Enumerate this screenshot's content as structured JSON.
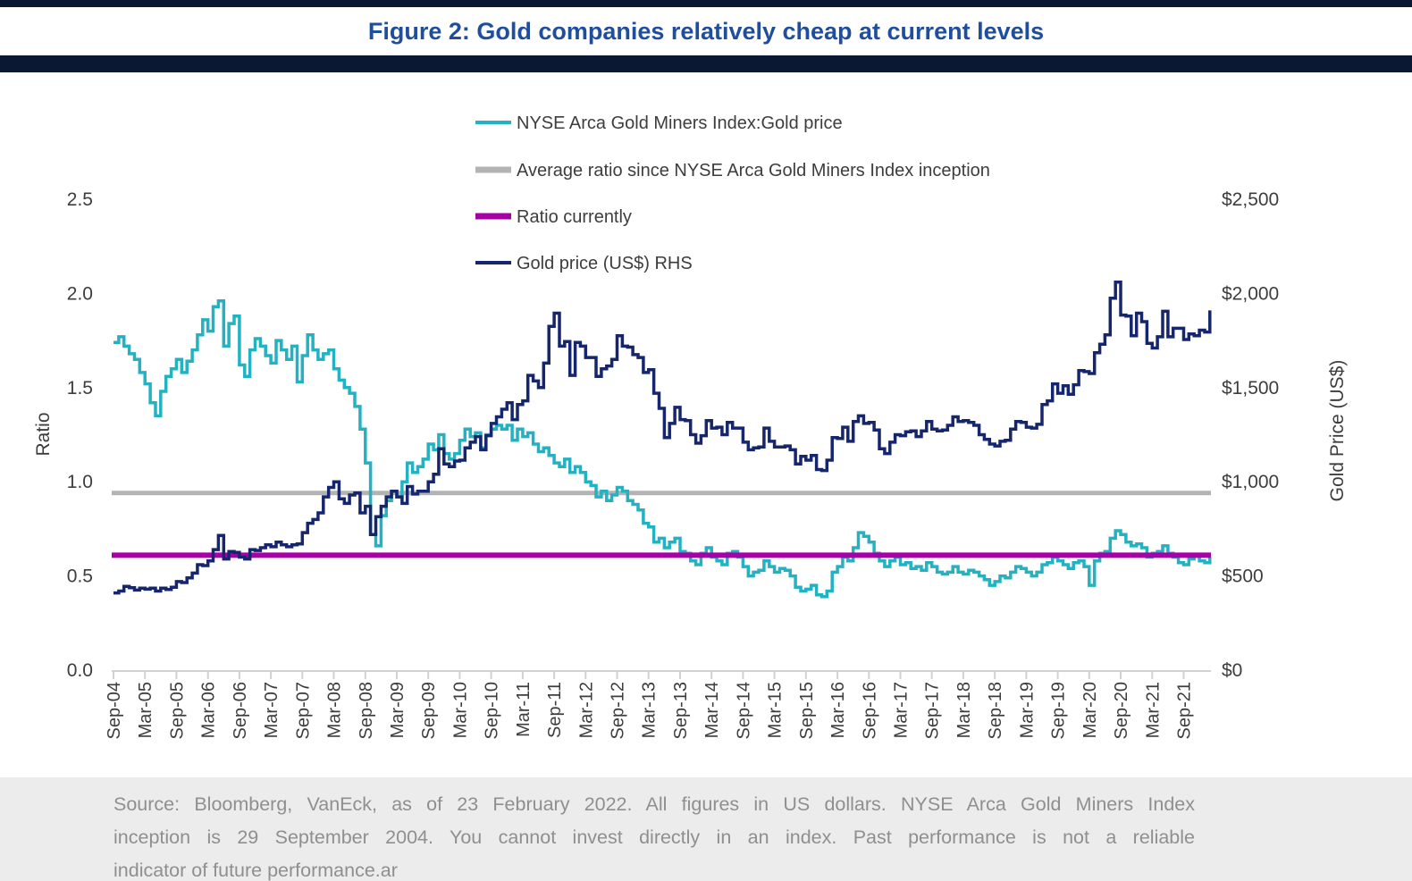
{
  "header": {
    "title": "Figure 2: Gold companies relatively cheap at current levels"
  },
  "colors": {
    "title_blue": "#1F4E9E",
    "bar_navy": "#0B1834",
    "ratio_teal": "#22B2C2",
    "average_gray": "#B3B3B3",
    "current_magenta": "#A800A8",
    "gold_navy": "#16266E",
    "axis_text": "#3D3D3D",
    "axis_line": "#D2D2D2",
    "footer_bg": "#ECECEC",
    "footer_text": "#8F8F8F"
  },
  "footer": {
    "lines": [
      "Source: Bloomberg, VanEck, as of 23 February 2022. All figures in US dollars. NYSE Arca Gold Miners Index",
      "inception is 29 September 2004. You cannot invest directly in an index. Past performance is not a reliable",
      "indicator of future performance.ar"
    ]
  },
  "chart_data": {
    "type": "line",
    "title": "Figure 2: Gold companies relatively cheap at current levels",
    "grid": false,
    "legend_position": "top-center",
    "x": {
      "start": "Sep-04",
      "end": "Feb-22",
      "freq": "monthly",
      "points": 210
    },
    "x_tick_labels": [
      "Sep-04",
      "Mar-05",
      "Sep-05",
      "Mar-06",
      "Sep-06",
      "Mar-07",
      "Sep-07",
      "Mar-08",
      "Sep-08",
      "Mar-09",
      "Sep-09",
      "Mar-10",
      "Sep-10",
      "Mar-11",
      "Sep-11",
      "Mar-12",
      "Sep-12",
      "Mar-13",
      "Sep-13",
      "Mar-14",
      "Sep-14",
      "Mar-15",
      "Sep-15",
      "Mar-16",
      "Sep-16",
      "Mar-17",
      "Sep-17",
      "Mar-18",
      "Sep-18",
      "Mar-19",
      "Sep-19",
      "Mar-20",
      "Sep-20",
      "Mar-21",
      "Sep-21"
    ],
    "left_axis": {
      "title": "Ratio",
      "ticks": [
        "2.5",
        "2.0",
        "1.5",
        "1.0",
        "0.5",
        "0.0"
      ],
      "range": [
        0,
        2.5
      ]
    },
    "right_axis": {
      "title": "Gold Price (US$)",
      "ticks": [
        "$2,500",
        "$2,000",
        "$1,500",
        "$1,000",
        "$500",
        "$0"
      ],
      "range": [
        0,
        2500
      ]
    },
    "series": [
      {
        "name": "NYSE Arca Gold Miners Index:Gold price",
        "kind": "line",
        "axis": "left",
        "color": "#22B2C2",
        "values": [
          1.74,
          1.77,
          1.72,
          1.68,
          1.65,
          1.58,
          1.52,
          1.42,
          1.35,
          1.48,
          1.56,
          1.6,
          1.65,
          1.58,
          1.64,
          1.7,
          1.78,
          1.86,
          1.8,
          1.93,
          1.96,
          1.72,
          1.84,
          1.88,
          1.62,
          1.56,
          1.7,
          1.76,
          1.72,
          1.67,
          1.63,
          1.75,
          1.7,
          1.65,
          1.72,
          1.53,
          1.67,
          1.78,
          1.7,
          1.65,
          1.68,
          1.7,
          1.6,
          1.54,
          1.5,
          1.47,
          1.4,
          1.28,
          1.1,
          0.72,
          0.66,
          0.82,
          0.9,
          0.95,
          0.92,
          1.0,
          1.1,
          1.05,
          1.08,
          1.12,
          1.2,
          1.17,
          1.25,
          1.15,
          1.12,
          1.15,
          1.22,
          1.28,
          1.24,
          1.26,
          1.18,
          1.25,
          1.28,
          1.3,
          1.28,
          1.3,
          1.22,
          1.28,
          1.24,
          1.26,
          1.2,
          1.16,
          1.18,
          1.14,
          1.1,
          1.08,
          1.12,
          1.05,
          1.08,
          1.05,
          1.0,
          0.98,
          0.92,
          0.95,
          0.9,
          0.93,
          0.97,
          0.95,
          0.9,
          0.88,
          0.85,
          0.78,
          0.76,
          0.68,
          0.7,
          0.65,
          0.68,
          0.7,
          0.63,
          0.62,
          0.58,
          0.56,
          0.62,
          0.65,
          0.6,
          0.58,
          0.56,
          0.62,
          0.63,
          0.6,
          0.55,
          0.5,
          0.52,
          0.53,
          0.58,
          0.55,
          0.52,
          0.54,
          0.53,
          0.5,
          0.44,
          0.42,
          0.43,
          0.45,
          0.4,
          0.39,
          0.42,
          0.52,
          0.55,
          0.6,
          0.58,
          0.65,
          0.73,
          0.71,
          0.68,
          0.62,
          0.58,
          0.55,
          0.58,
          0.6,
          0.56,
          0.57,
          0.54,
          0.55,
          0.53,
          0.57,
          0.55,
          0.52,
          0.51,
          0.52,
          0.55,
          0.52,
          0.51,
          0.53,
          0.52,
          0.5,
          0.48,
          0.45,
          0.47,
          0.5,
          0.49,
          0.52,
          0.55,
          0.54,
          0.52,
          0.5,
          0.52,
          0.56,
          0.57,
          0.6,
          0.58,
          0.56,
          0.54,
          0.57,
          0.58,
          0.55,
          0.45,
          0.58,
          0.62,
          0.63,
          0.7,
          0.74,
          0.72,
          0.68,
          0.66,
          0.67,
          0.65,
          0.6,
          0.62,
          0.63,
          0.66,
          0.62,
          0.6,
          0.57,
          0.56,
          0.59,
          0.61,
          0.58,
          0.57,
          0.6
        ]
      },
      {
        "name": "Average ratio since NYSE Arca Gold Miners Index inception",
        "kind": "hline",
        "axis": "left",
        "color": "#B3B3B3",
        "value": 0.94
      },
      {
        "name": "Ratio currently",
        "kind": "hline",
        "axis": "left",
        "color": "#A800A8",
        "value": 0.61
      },
      {
        "name": "Gold price (US$) RHS",
        "kind": "line",
        "axis": "right",
        "color": "#16266E",
        "values": [
          410,
          420,
          445,
          438,
          425,
          435,
          430,
          435,
          420,
          435,
          428,
          440,
          470,
          465,
          490,
          515,
          560,
          555,
          580,
          640,
          715,
          590,
          630,
          625,
          600,
          590,
          640,
          635,
          650,
          665,
          655,
          680,
          665,
          655,
          665,
          670,
          730,
          780,
          800,
          835,
          920,
          970,
          1000,
          910,
          885,
          930,
          940,
          835,
          870,
          720,
          815,
          870,
          920,
          950,
          920,
          885,
          975,
          935,
          950,
          950,
          1000,
          1040,
          1175,
          1095,
          1080,
          1110,
          1115,
          1180,
          1210,
          1240,
          1170,
          1245,
          1310,
          1345,
          1385,
          1420,
          1330,
          1410,
          1430,
          1565,
          1535,
          1500,
          1630,
          1825,
          1895,
          1720,
          1745,
          1565,
          1740,
          1720,
          1660,
          1660,
          1560,
          1600,
          1615,
          1650,
          1775,
          1720,
          1715,
          1675,
          1660,
          1580,
          1595,
          1470,
          1390,
          1235,
          1310,
          1395,
          1330,
          1325,
          1250,
          1205,
          1245,
          1325,
          1285,
          1290,
          1250,
          1315,
          1285,
          1285,
          1210,
          1170,
          1180,
          1185,
          1285,
          1215,
          1185,
          1185,
          1190,
          1170,
          1095,
          1135,
          1115,
          1140,
          1065,
          1060,
          1115,
          1235,
          1230,
          1290,
          1215,
          1320,
          1350,
          1310,
          1315,
          1275,
          1175,
          1150,
          1210,
          1250,
          1245,
          1265,
          1270,
          1240,
          1270,
          1320,
          1280,
          1270,
          1275,
          1300,
          1345,
          1320,
          1325,
          1315,
          1300,
          1250,
          1225,
          1200,
          1190,
          1215,
          1220,
          1280,
          1320,
          1315,
          1290,
          1285,
          1305,
          1410,
          1430,
          1520,
          1470,
          1510,
          1465,
          1515,
          1590,
          1585,
          1575,
          1685,
          1730,
          1780,
          1975,
          2060,
          1885,
          1880,
          1775,
          1895,
          1850,
          1735,
          1710,
          1770,
          1905,
          1770,
          1815,
          1815,
          1755,
          1785,
          1775,
          1805,
          1795,
          1910
        ]
      }
    ]
  }
}
